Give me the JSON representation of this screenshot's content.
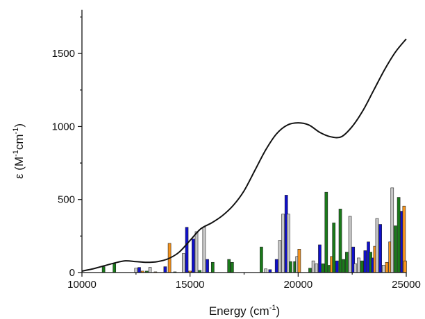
{
  "chart_data": {
    "type": "bar+line",
    "xlabel": "Energy (cm",
    "xlabel_sup": "-1",
    "xlabel_end": ")",
    "ylabel_prefix": "ε (M",
    "ylabel_sup1": "-1",
    "ylabel_mid": "cm",
    "ylabel_sup2": "-1",
    "ylabel_end": ")",
    "xlim": [
      10000,
      25000
    ],
    "ylim": [
      0,
      1800
    ],
    "x_ticks": [
      10000,
      15000,
      20000,
      25000
    ],
    "x_tick_labels": [
      "10000",
      "15000",
      "20000",
      "25000"
    ],
    "y_ticks": [
      0,
      500,
      1000,
      1500
    ],
    "y_tick_labels": [
      "0",
      "500",
      "1000",
      "1500"
    ],
    "grid": false,
    "colors": {
      "green": "#1a7a1a",
      "blue": "#1010cc",
      "grey": "#c8c8c8",
      "orange": "#f7941d",
      "line": "#111111"
    },
    "bar_width": 130,
    "bars": [
      {
        "x": 11000,
        "y": 40,
        "color": "green"
      },
      {
        "x": 11500,
        "y": 60,
        "color": "green"
      },
      {
        "x": 12500,
        "y": 30,
        "color": "grey"
      },
      {
        "x": 12650,
        "y": 35,
        "color": "blue"
      },
      {
        "x": 12800,
        "y": 10,
        "color": "orange"
      },
      {
        "x": 13000,
        "y": 10,
        "color": "green"
      },
      {
        "x": 13150,
        "y": 35,
        "color": "grey"
      },
      {
        "x": 13400,
        "y": 5,
        "color": "orange"
      },
      {
        "x": 13850,
        "y": 40,
        "color": "blue"
      },
      {
        "x": 14050,
        "y": 200,
        "color": "orange"
      },
      {
        "x": 14300,
        "y": 5,
        "color": "green"
      },
      {
        "x": 14700,
        "y": 130,
        "color": "grey"
      },
      {
        "x": 14850,
        "y": 310,
        "color": "blue"
      },
      {
        "x": 15000,
        "y": 10,
        "color": "orange"
      },
      {
        "x": 15150,
        "y": 230,
        "color": "blue"
      },
      {
        "x": 15300,
        "y": 280,
        "color": "grey"
      },
      {
        "x": 15450,
        "y": 15,
        "color": "green"
      },
      {
        "x": 15650,
        "y": 310,
        "color": "grey"
      },
      {
        "x": 15800,
        "y": 90,
        "color": "blue"
      },
      {
        "x": 16050,
        "y": 70,
        "color": "green"
      },
      {
        "x": 16800,
        "y": 90,
        "color": "green"
      },
      {
        "x": 16950,
        "y": 70,
        "color": "green"
      },
      {
        "x": 18300,
        "y": 175,
        "color": "green"
      },
      {
        "x": 18500,
        "y": 25,
        "color": "grey"
      },
      {
        "x": 18700,
        "y": 20,
        "color": "blue"
      },
      {
        "x": 19000,
        "y": 90,
        "color": "blue"
      },
      {
        "x": 19150,
        "y": 220,
        "color": "grey"
      },
      {
        "x": 19300,
        "y": 400,
        "color": "grey"
      },
      {
        "x": 19450,
        "y": 530,
        "color": "blue"
      },
      {
        "x": 19550,
        "y": 400,
        "color": "grey"
      },
      {
        "x": 19650,
        "y": 75,
        "color": "green"
      },
      {
        "x": 19850,
        "y": 75,
        "color": "green"
      },
      {
        "x": 19950,
        "y": 110,
        "color": "grey"
      },
      {
        "x": 20050,
        "y": 160,
        "color": "orange"
      },
      {
        "x": 20550,
        "y": 30,
        "color": "green"
      },
      {
        "x": 20700,
        "y": 80,
        "color": "grey"
      },
      {
        "x": 20850,
        "y": 60,
        "color": "grey"
      },
      {
        "x": 21000,
        "y": 190,
        "color": "blue"
      },
      {
        "x": 21150,
        "y": 60,
        "color": "green"
      },
      {
        "x": 21300,
        "y": 550,
        "color": "green"
      },
      {
        "x": 21450,
        "y": 50,
        "color": "green"
      },
      {
        "x": 21550,
        "y": 110,
        "color": "orange"
      },
      {
        "x": 21650,
        "y": 340,
        "color": "green"
      },
      {
        "x": 21800,
        "y": 80,
        "color": "blue"
      },
      {
        "x": 21950,
        "y": 435,
        "color": "green"
      },
      {
        "x": 22100,
        "y": 90,
        "color": "green"
      },
      {
        "x": 22250,
        "y": 140,
        "color": "green"
      },
      {
        "x": 22400,
        "y": 385,
        "color": "grey"
      },
      {
        "x": 22550,
        "y": 175,
        "color": "blue"
      },
      {
        "x": 22650,
        "y": 60,
        "color": "grey"
      },
      {
        "x": 22800,
        "y": 100,
        "color": "grey"
      },
      {
        "x": 22950,
        "y": 80,
        "color": "green"
      },
      {
        "x": 23100,
        "y": 150,
        "color": "blue"
      },
      {
        "x": 23250,
        "y": 210,
        "color": "blue"
      },
      {
        "x": 23350,
        "y": 140,
        "color": "green"
      },
      {
        "x": 23450,
        "y": 100,
        "color": "blue"
      },
      {
        "x": 23550,
        "y": 180,
        "color": "orange"
      },
      {
        "x": 23650,
        "y": 370,
        "color": "grey"
      },
      {
        "x": 23800,
        "y": 330,
        "color": "blue"
      },
      {
        "x": 23950,
        "y": 50,
        "color": "grey"
      },
      {
        "x": 24100,
        "y": 70,
        "color": "orange"
      },
      {
        "x": 24250,
        "y": 210,
        "color": "orange"
      },
      {
        "x": 24350,
        "y": 580,
        "color": "grey"
      },
      {
        "x": 24500,
        "y": 320,
        "color": "green"
      },
      {
        "x": 24650,
        "y": 515,
        "color": "green"
      },
      {
        "x": 24800,
        "y": 420,
        "color": "blue"
      },
      {
        "x": 24900,
        "y": 455,
        "color": "orange"
      },
      {
        "x": 24950,
        "y": 80,
        "color": "orange"
      }
    ],
    "line": {
      "x": [
        10000,
        10500,
        11000,
        11500,
        12000,
        12500,
        13000,
        13500,
        14000,
        14500,
        15000,
        15500,
        16000,
        16500,
        17000,
        17500,
        18000,
        18500,
        19000,
        19500,
        20000,
        20500,
        21000,
        21500,
        22000,
        22500,
        23000,
        23500,
        24000,
        24500,
        25000
      ],
      "y": [
        10,
        25,
        45,
        65,
        80,
        75,
        70,
        75,
        95,
        140,
        220,
        300,
        340,
        390,
        460,
        560,
        700,
        840,
        950,
        1010,
        1025,
        1010,
        960,
        930,
        930,
        1000,
        1110,
        1250,
        1390,
        1510,
        1600
      ]
    }
  }
}
